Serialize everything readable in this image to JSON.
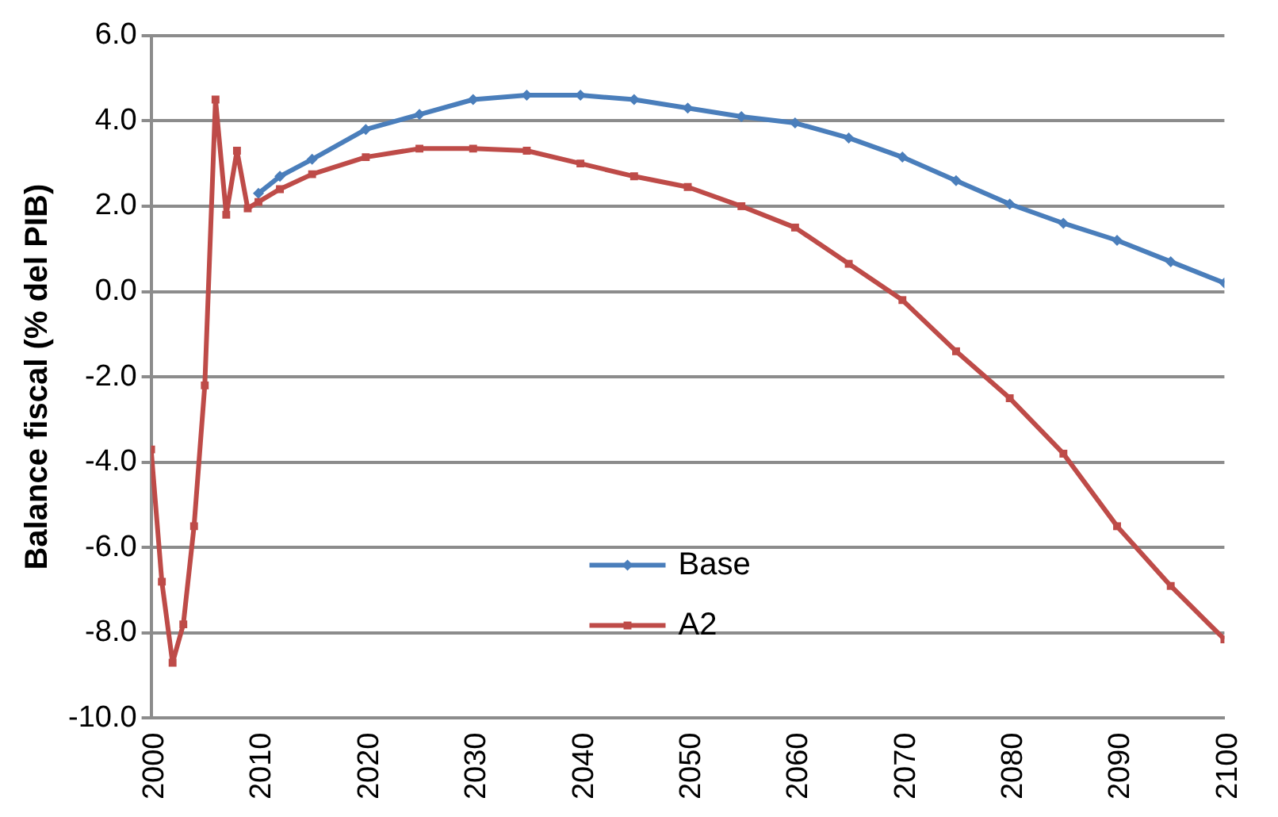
{
  "chart_data": {
    "type": "line",
    "ylabel": "Balance fiscal (% del PIB)",
    "xlim": [
      2000,
      2100
    ],
    "xticks": [
      2000,
      2010,
      2020,
      2030,
      2040,
      2050,
      2060,
      2070,
      2080,
      2090,
      2100
    ],
    "ylim": [
      -10,
      6
    ],
    "yticks": [
      {
        "value": -10,
        "label": "-10.0"
      },
      {
        "value": -8,
        "label": "-8.0"
      },
      {
        "value": -6,
        "label": "-6.0"
      },
      {
        "value": -4,
        "label": "-4.0"
      },
      {
        "value": -2,
        "label": "-2.0"
      },
      {
        "value": 0,
        "label": "0.0"
      },
      {
        "value": 2,
        "label": "2.0"
      },
      {
        "value": 4,
        "label": "4.0"
      },
      {
        "value": 6,
        "label": "6.0"
      }
    ],
    "grid": "y",
    "legend": "bottom",
    "series": [
      {
        "name": "Base",
        "color": "#4a7ebb",
        "marker": "diamond",
        "x": [
          2010,
          2012,
          2015,
          2020,
          2025,
          2030,
          2035,
          2040,
          2045,
          2050,
          2055,
          2060,
          2065,
          2070,
          2075,
          2080,
          2085,
          2090,
          2095,
          2100
        ],
        "values": [
          2.3,
          2.7,
          3.1,
          3.8,
          4.15,
          4.5,
          4.6,
          4.6,
          4.5,
          4.3,
          4.1,
          3.95,
          3.6,
          3.15,
          2.6,
          2.05,
          1.6,
          1.2,
          0.7,
          0.2
        ]
      },
      {
        "name": "A2",
        "color": "#be4b48",
        "marker": "square",
        "x": [
          2000,
          2001,
          2002,
          2003,
          2004,
          2005,
          2006,
          2007,
          2008,
          2009,
          2010,
          2012,
          2015,
          2020,
          2025,
          2030,
          2035,
          2040,
          2045,
          2050,
          2055,
          2060,
          2065,
          2070,
          2075,
          2080,
          2085,
          2090,
          2095,
          2100
        ],
        "values": [
          -3.7,
          -6.8,
          -8.7,
          -7.8,
          -5.5,
          -2.2,
          4.5,
          1.8,
          3.3,
          1.95,
          2.1,
          2.4,
          2.75,
          3.15,
          3.35,
          3.35,
          3.3,
          3.0,
          2.7,
          2.45,
          2.0,
          1.5,
          0.65,
          -0.2,
          -1.4,
          -2.5,
          -3.8,
          -5.5,
          -6.9,
          -8.15
        ]
      }
    ]
  }
}
